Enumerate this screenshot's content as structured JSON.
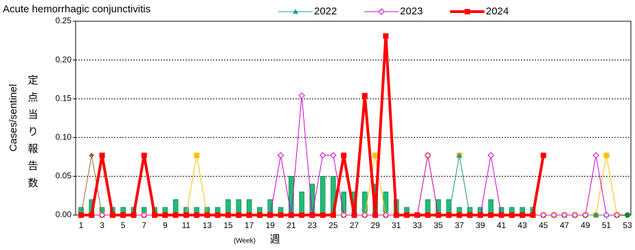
{
  "chart_data": {
    "type": "line",
    "title": "Acute hemorrhagic conjunctivitis",
    "y_label": "Cases/sentinel",
    "y_label_ja": "定点当り報告数",
    "x_label": "(Week)",
    "x_label_ja": "週",
    "categories": [
      1,
      null,
      3,
      null,
      5,
      null,
      7,
      null,
      9,
      null,
      11,
      null,
      13,
      null,
      15,
      null,
      17,
      null,
      19,
      null,
      21,
      null,
      23,
      null,
      25,
      null,
      27,
      null,
      29,
      null,
      31,
      null,
      33,
      null,
      35,
      null,
      37,
      null,
      39,
      null,
      41,
      null,
      43,
      null,
      45,
      null,
      47,
      null,
      49,
      null,
      51,
      null,
      53
    ],
    "ylim": [
      0,
      0.25
    ],
    "yticks": [
      {
        "value": 0,
        "label": "0.00"
      },
      {
        "value": 0.05,
        "label": "0.05"
      },
      {
        "value": 0.1,
        "label": "0.10"
      },
      {
        "value": 0.15,
        "label": "0.15"
      },
      {
        "value": 0.2,
        "label": "0.20"
      },
      {
        "value": 0.25,
        "label": "0.25"
      }
    ],
    "grid": true,
    "series": [
      {
        "style": "bar",
        "color": "#22bb77",
        "values": [
          0.01,
          0.02,
          0.01,
          0.01,
          0.01,
          0.01,
          0.01,
          0.01,
          0.01,
          0.02,
          0.01,
          0.01,
          0.01,
          0.01,
          0.02,
          0.02,
          0.02,
          0.01,
          0.02,
          0.01,
          0.05,
          0.03,
          0.04,
          0.05,
          0.05,
          0.03,
          0.03,
          0.03,
          0.04,
          0.03,
          0.02,
          0.01,
          0,
          0.02,
          0.02,
          0.02,
          0.01,
          0.01,
          0.01,
          0.02,
          0.01,
          0.01,
          0.01,
          0.01,
          0,
          0,
          0,
          0,
          0,
          0,
          0,
          0,
          0
        ]
      },
      {
        "style": "line",
        "marker": "square",
        "color": "#ffc000",
        "values": [
          0,
          0,
          0,
          0,
          0,
          0,
          0,
          0,
          0,
          0,
          0,
          0.077,
          0,
          0,
          0,
          0,
          0,
          0,
          0,
          0,
          0,
          0,
          0,
          0,
          0,
          0,
          0,
          0,
          0.077,
          0,
          0,
          0,
          0,
          0.077,
          0,
          0,
          0.077,
          0,
          0,
          0,
          0,
          0,
          0,
          0,
          0,
          0,
          0,
          0,
          0,
          0,
          0.077,
          0,
          null
        ]
      },
      {
        "style": "line",
        "marker": "diamond",
        "color": "#996633",
        "values": [
          0,
          0.077,
          0,
          0,
          0,
          0,
          0,
          0,
          0,
          0,
          0,
          0,
          0,
          0,
          0,
          0,
          0,
          0,
          0,
          0,
          0,
          0,
          0,
          0,
          0,
          0,
          0,
          0,
          0,
          0,
          0,
          0,
          0,
          0,
          0,
          0,
          0,
          0,
          0,
          0,
          0,
          0,
          0,
          0,
          0,
          0,
          0,
          0,
          0,
          0,
          0,
          0,
          null
        ]
      },
      {
        "name": "2022",
        "style": "line",
        "marker": "triangle",
        "color": "#1a9aa0",
        "values": [
          0,
          0,
          0,
          0,
          0,
          0,
          0,
          0,
          0,
          0,
          0,
          0,
          0,
          0,
          0,
          0,
          0,
          0,
          0,
          0,
          0,
          0,
          0,
          0,
          0,
          0,
          0,
          0,
          0,
          0,
          0,
          0,
          0,
          0,
          0,
          0,
          0.077,
          0,
          0,
          0,
          0,
          0,
          0,
          0,
          0,
          0,
          0,
          0,
          0,
          0,
          0,
          0,
          null
        ]
      },
      {
        "name": "2023",
        "style": "line",
        "marker": "hollow-diamond",
        "color": "#cc00cc",
        "values": [
          0,
          0,
          0,
          0,
          0,
          0,
          0,
          0,
          0,
          0,
          0,
          0,
          0,
          0,
          0,
          0,
          0,
          0,
          0,
          0.077,
          0,
          0.154,
          0,
          0.077,
          0.077,
          0,
          0,
          0,
          0,
          0,
          0,
          0,
          0,
          0.077,
          0,
          0,
          0,
          0,
          0,
          0.077,
          0,
          0,
          0,
          0,
          0,
          0,
          0,
          0,
          0,
          0.077,
          0,
          0,
          null
        ]
      },
      {
        "name": "2024",
        "style": "line",
        "marker": "square",
        "color": "#ff0000",
        "width": 4,
        "values": [
          0,
          0,
          0.077,
          0,
          0,
          0,
          0.077,
          0,
          0,
          0,
          0,
          0,
          0,
          0,
          0,
          0,
          0,
          0,
          0,
          0,
          0,
          0,
          0,
          0,
          0,
          0.077,
          0,
          0.154,
          0,
          0.231,
          0,
          0,
          0,
          0,
          0,
          0,
          0,
          0,
          0,
          0,
          0,
          0,
          0,
          0,
          0.077,
          null,
          null,
          null,
          null,
          null,
          null,
          null,
          null
        ]
      },
      {
        "style": "line",
        "marker": "circle",
        "color": "#118833",
        "values": [
          null,
          null,
          null,
          null,
          null,
          null,
          null,
          null,
          null,
          null,
          null,
          null,
          null,
          null,
          null,
          null,
          null,
          null,
          null,
          null,
          null,
          null,
          null,
          null,
          null,
          null,
          null,
          null,
          null,
          null,
          null,
          null,
          null,
          null,
          null,
          null,
          null,
          null,
          null,
          null,
          null,
          null,
          null,
          null,
          null,
          null,
          null,
          null,
          null,
          null,
          null,
          null,
          0
        ]
      }
    ]
  }
}
